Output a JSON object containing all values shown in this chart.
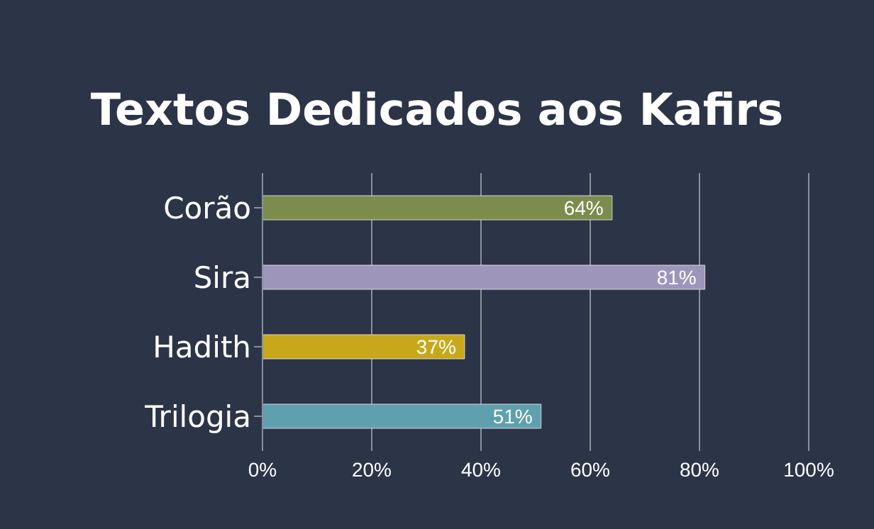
{
  "chart_data": {
    "type": "bar",
    "orientation": "horizontal",
    "title": "Textos Dedicados aos Kafirs",
    "categories": [
      "Corão",
      "Sira",
      "Hadith",
      "Trilogia"
    ],
    "values": [
      64,
      81,
      37,
      51
    ],
    "colors": [
      "#7b8c4c",
      "#9d96ba",
      "#c8a81a",
      "#5fa0ae"
    ],
    "value_labels": [
      "64%",
      "81%",
      "37%",
      "51%"
    ],
    "xlim": [
      0,
      100
    ],
    "xticks": [
      {
        "value": 0,
        "label": "0%"
      },
      {
        "value": 20,
        "label": "20%"
      },
      {
        "value": 40,
        "label": "40%"
      },
      {
        "value": 60,
        "label": "60%"
      },
      {
        "value": 80,
        "label": "80%"
      },
      {
        "value": 100,
        "label": "100%"
      }
    ],
    "grid": "x"
  }
}
